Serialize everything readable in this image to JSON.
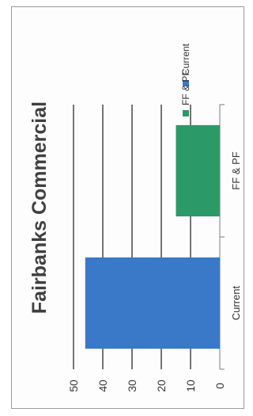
{
  "chart_data": {
    "type": "bar",
    "orientation": "rotated",
    "title": "Fairbanks Commercial",
    "categories": [
      "Current",
      "FF & PF"
    ],
    "series": [
      {
        "name": "Current",
        "values": [
          46,
          0
        ],
        "color": "#3a78c8"
      },
      {
        "name": "FF & PF",
        "values": [
          0,
          15
        ],
        "color": "#2b9968"
      }
    ],
    "ylim": [
      0,
      50
    ],
    "yticks": [
      0,
      10,
      20,
      30,
      40,
      50
    ],
    "grid": true,
    "legend": "top-right"
  }
}
